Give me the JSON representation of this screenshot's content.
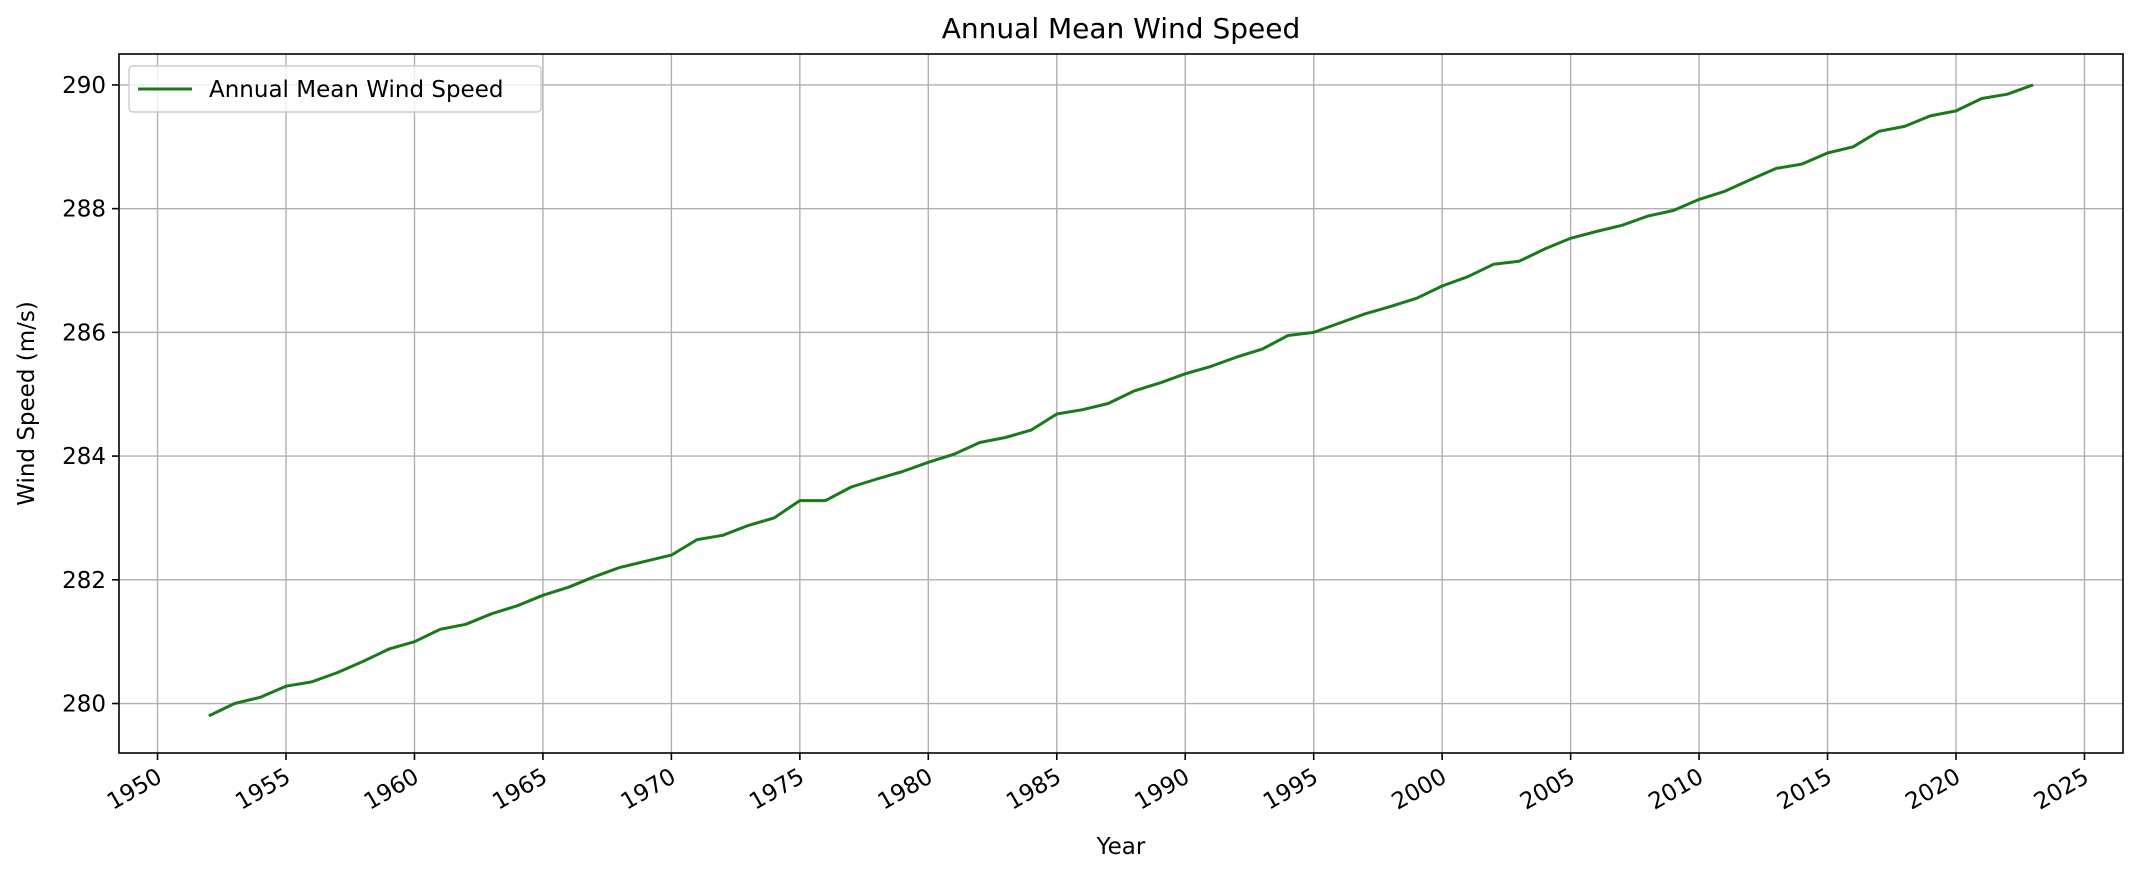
{
  "chart_data": {
    "type": "line",
    "title": "Annual Mean Wind Speed",
    "xlabel": "Year",
    "ylabel": "Wind Speed (m/s)",
    "xlim": [
      1948.5,
      2026.5
    ],
    "ylim": [
      279.2,
      290.5
    ],
    "xticks": [
      "1950",
      "1955",
      "1960",
      "1965",
      "1970",
      "1975",
      "1980",
      "1985",
      "1990",
      "1995",
      "2000",
      "2005",
      "2010",
      "2015",
      "2020",
      "2025"
    ],
    "yticks": [
      "280",
      "282",
      "284",
      "286",
      "288",
      "290"
    ],
    "grid": true,
    "legend_position": "upper-left",
    "color": "#1a7a1a",
    "series": [
      {
        "name": "Annual Mean Wind Speed",
        "x": [
          1952,
          1953,
          1954,
          1955,
          1956,
          1957,
          1958,
          1959,
          1960,
          1961,
          1962,
          1963,
          1964,
          1965,
          1966,
          1967,
          1968,
          1969,
          1970,
          1971,
          1972,
          1973,
          1974,
          1975,
          1976,
          1977,
          1978,
          1979,
          1980,
          1981,
          1982,
          1983,
          1984,
          1985,
          1986,
          1987,
          1988,
          1989,
          1990,
          1991,
          1992,
          1993,
          1994,
          1995,
          1996,
          1997,
          1998,
          1999,
          2000,
          2001,
          2002,
          2003,
          2004,
          2005,
          2006,
          2007,
          2008,
          2009,
          2010,
          2011,
          2012,
          2013,
          2014,
          2015,
          2016,
          2017,
          2018,
          2019,
          2020,
          2021,
          2022,
          2023
        ],
        "values": [
          279.8,
          280.0,
          280.1,
          280.28,
          280.35,
          280.5,
          280.68,
          280.88,
          281.0,
          281.2,
          281.28,
          281.45,
          281.58,
          281.75,
          281.88,
          282.05,
          282.2,
          282.3,
          282.4,
          282.65,
          282.72,
          282.88,
          283.0,
          283.28,
          283.28,
          283.5,
          283.63,
          283.75,
          283.9,
          284.03,
          284.22,
          284.3,
          284.42,
          284.68,
          284.75,
          284.85,
          285.05,
          285.18,
          285.33,
          285.45,
          285.6,
          285.73,
          285.95,
          286.0,
          286.15,
          286.3,
          286.42,
          286.55,
          286.75,
          286.9,
          287.1,
          287.15,
          287.35,
          287.52,
          287.63,
          287.73,
          287.88,
          287.97,
          288.15,
          288.28,
          288.47,
          288.65,
          288.72,
          288.9,
          289.0,
          289.25,
          289.33,
          289.5,
          289.58,
          289.78,
          289.85,
          290.0
        ]
      }
    ]
  }
}
